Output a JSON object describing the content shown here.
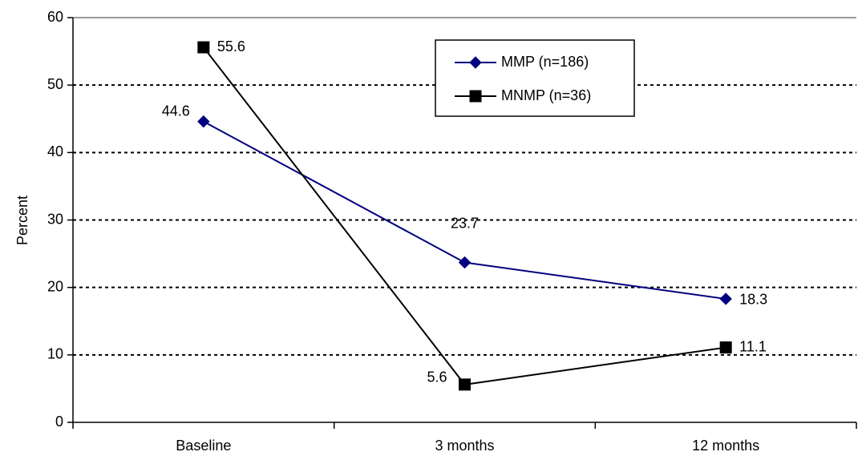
{
  "chart_data": {
    "type": "line",
    "title": "",
    "xlabel": "",
    "ylabel": "Percent",
    "categories": [
      "Baseline",
      "3 months",
      "12 months"
    ],
    "ylim": [
      0,
      60
    ],
    "yticks": [
      0,
      10,
      20,
      30,
      40,
      50,
      60
    ],
    "grid": true,
    "legend_position": "top-center",
    "series": [
      {
        "name": "MMP (n=186)",
        "values": [
          44.6,
          23.7,
          18.3
        ],
        "labels": [
          "44.6",
          "23.7",
          "18.3"
        ],
        "color": "#000080",
        "marker": "diamond"
      },
      {
        "name": "MNMP (n=36)",
        "values": [
          55.6,
          5.6,
          11.1
        ],
        "labels": [
          "55.6",
          "5.6",
          "11.1"
        ],
        "color": "#000000",
        "marker": "square"
      }
    ]
  }
}
